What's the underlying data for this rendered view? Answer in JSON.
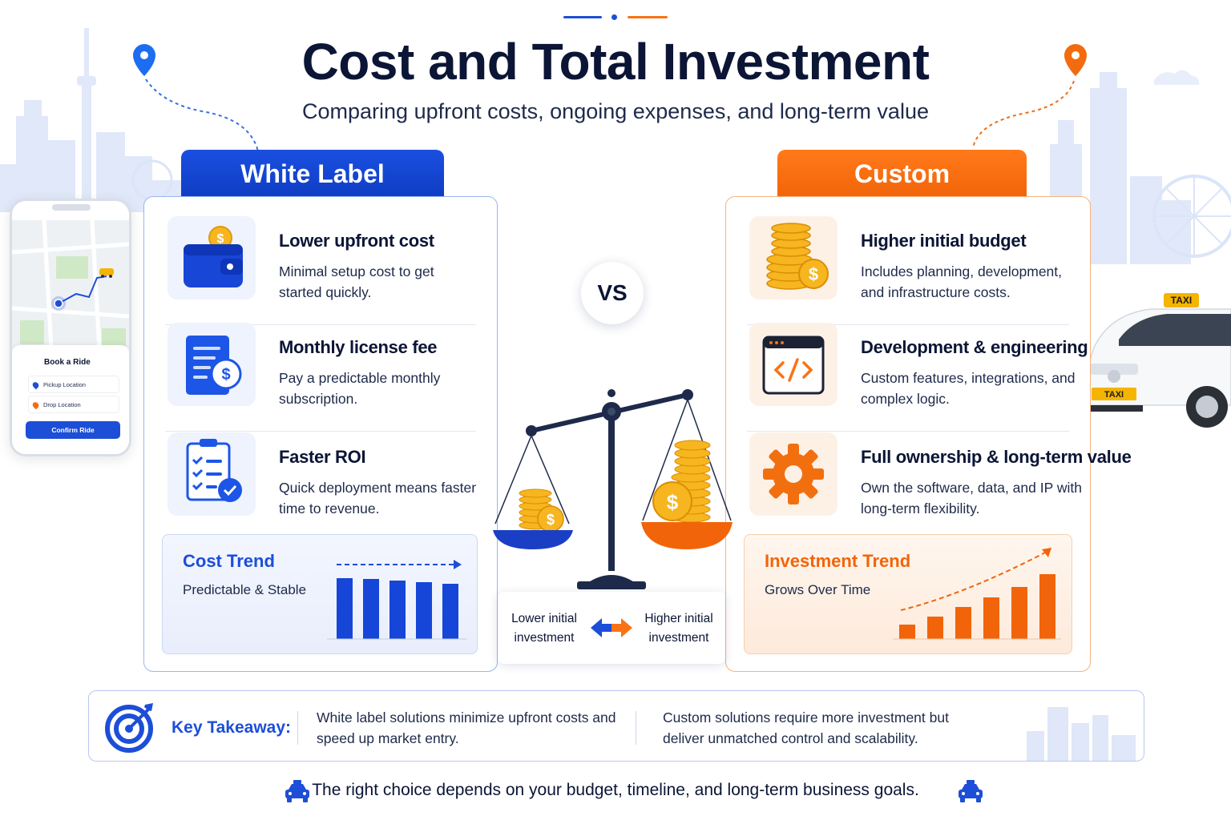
{
  "header": {
    "title": "Cost and Total Investment",
    "subtitle": "Comparing upfront costs, ongoing expenses, and long-term value"
  },
  "colors": {
    "brand_blue": "#1d4ed8",
    "brand_orange": "#f97316",
    "text_dark": "#0b1535"
  },
  "white_label": {
    "tab_label": "White Label",
    "features": [
      {
        "title": "Lower upfront cost",
        "description": "Minimal setup cost to get started quickly.",
        "icon": "wallet-coin-icon"
      },
      {
        "title": "Monthly license fee",
        "description": "Pay a predictable monthly subscription.",
        "icon": "invoice-dollar-icon"
      },
      {
        "title": "Faster ROI",
        "description": "Quick deployment means faster time to revenue.",
        "icon": "checklist-icon"
      }
    ],
    "trend": {
      "title": "Cost Trend",
      "subtitle": "Predictable & Stable"
    }
  },
  "custom": {
    "tab_label": "Custom",
    "features": [
      {
        "title": "Higher initial budget",
        "description": "Includes planning, development, and infrastructure costs.",
        "icon": "coin-stack-icon"
      },
      {
        "title": "Development & engineering",
        "description": "Custom features, integrations, and complex logic.",
        "icon": "code-window-icon"
      },
      {
        "title": "Full ownership & long-term value",
        "description": "Own the software, data, and IP with long-term flexibility.",
        "icon": "gear-icon"
      }
    ],
    "trend": {
      "title": "Investment Trend",
      "subtitle": "Grows Over Time"
    }
  },
  "center": {
    "vs_label": "VS",
    "compare_left": "Lower initial investment",
    "compare_right": "Higher initial investment"
  },
  "phone": {
    "sheet_title": "Book a Ride",
    "pickup_placeholder": "Pickup Location",
    "drop_placeholder": "Drop Location",
    "confirm_label": "Confirm Ride"
  },
  "taxi": {
    "roof_sign": "TAXI",
    "plate": "TAXI"
  },
  "takeaway": {
    "label": "Key Takeaway:",
    "left_text": "White label solutions minimize upfront costs and speed up market entry.",
    "right_text": "Custom solutions require more investment but deliver unmatched control and scalability."
  },
  "footer": {
    "text": "The right choice depends on your budget, timeline, and long-term business goals."
  }
}
